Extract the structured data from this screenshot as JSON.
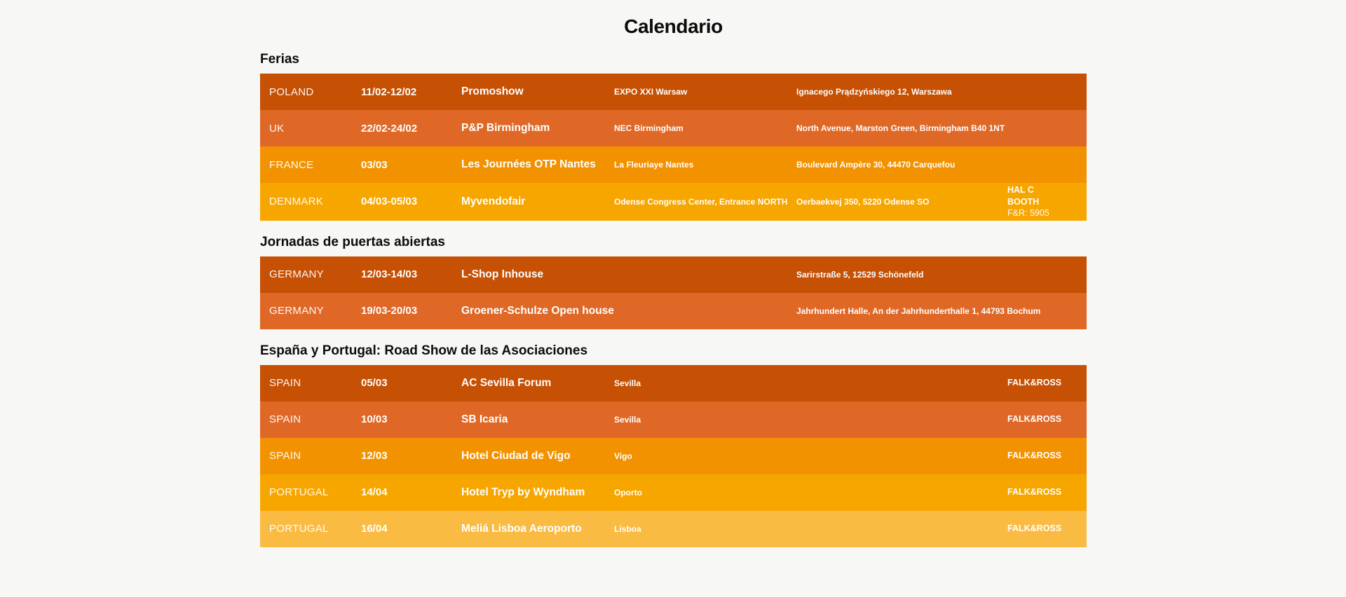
{
  "page": {
    "title": "Calendario",
    "background": "#F7F7F6"
  },
  "colors": {
    "row_shades": [
      "#C65004",
      "#DF6827",
      "#F29200",
      "#F7A600",
      "#FABB42"
    ],
    "heading_text": "#0C0C0C",
    "row_text": "#FFFFFF"
  },
  "sections": [
    {
      "heading": "Ferias",
      "rows": [
        {
          "country": "POLAND",
          "date": "11/02-12/02",
          "event": "Promoshow",
          "venue": "EXPO XXI Warsaw",
          "address": "Ignacego Prądzyńskiego 12, Warszawa",
          "extra_lines": []
        },
        {
          "country": "UK",
          "date": "22/02-24/02",
          "event": "P&P Birmingham",
          "venue": "NEC Birmingham",
          "address": "North Avenue, Marston Green, Birmingham B40 1NT",
          "extra_lines": []
        },
        {
          "country": "FRANCE",
          "date": "03/03",
          "event": "Les Journées OTP Nantes",
          "venue": "La Fleuriaye Nantes",
          "address": "Boulevard Ampère 30, 44470 Carquefou",
          "extra_lines": []
        },
        {
          "country": "DENMARK",
          "date": "04/03-05/03",
          "event": "Myvendofair",
          "venue": "Odense Congress Center, Entrance NORTH",
          "address": "Oerbaekvej 350, 5220 Odense SO",
          "extra_lines": [
            {
              "text": "HAL C",
              "bold": true
            },
            {
              "text": "BOOTH",
              "bold": true
            },
            {
              "text": "F&R: 5905",
              "bold": false
            }
          ]
        }
      ]
    },
    {
      "heading": "Jornadas de puertas abiertas",
      "rows": [
        {
          "country": "GERMANY",
          "date": "12/03-14/03",
          "event": "L-Shop Inhouse",
          "venue": "",
          "address": "Sarirstraße 5, 12529 Schönefeld",
          "extra_lines": []
        },
        {
          "country": "GERMANY",
          "date": "19/03-20/03",
          "event": "Groener-Schulze Open house",
          "venue": "",
          "address": "Jahrhundert Halle, An der Jahrhunderthalle 1, 44793 Bochum",
          "extra_lines": []
        }
      ]
    },
    {
      "heading": "España y Portugal: Road Show de las Asociaciones",
      "rows": [
        {
          "country": "SPAIN",
          "date": "05/03",
          "event": "AC Sevilla Forum",
          "venue": "Sevilla",
          "address": "",
          "extra_lines": [
            {
              "text": "FALK&ROSS",
              "bold": true
            }
          ]
        },
        {
          "country": "SPAIN",
          "date": "10/03",
          "event": "SB Icaria",
          "venue": "Sevilla",
          "address": "",
          "extra_lines": [
            {
              "text": "FALK&ROSS",
              "bold": true
            }
          ]
        },
        {
          "country": "SPAIN",
          "date": "12/03",
          "event": "Hotel Ciudad de Vigo",
          "venue": "Vigo",
          "address": "",
          "extra_lines": [
            {
              "text": "FALK&ROSS",
              "bold": true
            }
          ]
        },
        {
          "country": "PORTUGAL",
          "date": "14/04",
          "event": "Hotel Tryp by Wyndham",
          "venue": "Oporto",
          "address": "",
          "extra_lines": [
            {
              "text": "FALK&ROSS",
              "bold": true
            }
          ]
        },
        {
          "country": "PORTUGAL",
          "date": "16/04",
          "event": "Meliá Lisboa Aeroporto",
          "venue": "Lisboa",
          "address": "",
          "extra_lines": [
            {
              "text": "FALK&ROSS",
              "bold": true
            }
          ]
        }
      ]
    }
  ]
}
